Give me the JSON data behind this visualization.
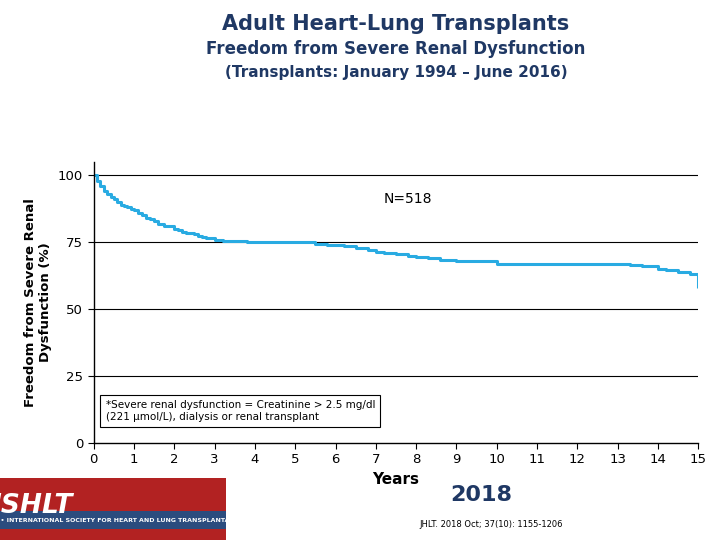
{
  "title_line1": "Adult Heart-Lung Transplants",
  "title_line2": "Freedom from Severe Renal Dysfunction",
  "title_line3": "(Transplants: January 1994 – June 2016)",
  "xlabel": "Years",
  "ylabel": "Freedom from Severe Renal\nDysfunction (%)",
  "n_label": "N=518",
  "annotation": "*Severe renal dysfunction = Creatinine > 2.5 mg/dl\n(221 μmol/L), dialysis or renal transplant",
  "curve_color": "#29ABE2",
  "curve_linewidth": 2.2,
  "title_color": "#1F3864",
  "xlim": [
    0,
    15
  ],
  "ylim": [
    0,
    105
  ],
  "yticks": [
    0,
    25,
    50,
    75,
    100
  ],
  "xticks": [
    0,
    1,
    2,
    3,
    4,
    5,
    6,
    7,
    8,
    9,
    10,
    11,
    12,
    13,
    14,
    15
  ],
  "km_x": [
    0,
    0.08,
    0.17,
    0.25,
    0.33,
    0.42,
    0.5,
    0.58,
    0.67,
    0.75,
    0.83,
    0.92,
    1.0,
    1.1,
    1.2,
    1.3,
    1.4,
    1.5,
    1.6,
    1.75,
    2.0,
    2.1,
    2.2,
    2.3,
    2.5,
    2.6,
    2.7,
    2.8,
    3.0,
    3.2,
    3.3,
    3.5,
    3.7,
    3.8,
    4.0,
    4.2,
    4.4,
    4.6,
    4.8,
    5.0,
    5.2,
    5.5,
    5.8,
    6.0,
    6.2,
    6.5,
    6.8,
    7.0,
    7.2,
    7.5,
    7.8,
    8.0,
    8.3,
    8.6,
    9.0,
    9.5,
    10.0,
    10.5,
    11.0,
    11.5,
    12.0,
    12.5,
    13.0,
    13.3,
    13.6,
    14.0,
    14.2,
    14.5,
    14.8,
    15.0
  ],
  "km_y": [
    100,
    98,
    96,
    94,
    93,
    92,
    91,
    90,
    89,
    88.5,
    88,
    87.5,
    87,
    86,
    85,
    84,
    83.5,
    83,
    82,
    81,
    80,
    79.5,
    79,
    78.5,
    78,
    77.5,
    77,
    76.5,
    76,
    75.5,
    75.5,
    75.5,
    75.5,
    75,
    75,
    75,
    75,
    75,
    75,
    75,
    75,
    74.5,
    74,
    74,
    73.5,
    73,
    72,
    71.5,
    71,
    70.5,
    70,
    69.5,
    69,
    68.5,
    68,
    68,
    67,
    67,
    67,
    67,
    67,
    67,
    67,
    66.5,
    66,
    65,
    64.5,
    64,
    63,
    58
  ]
}
